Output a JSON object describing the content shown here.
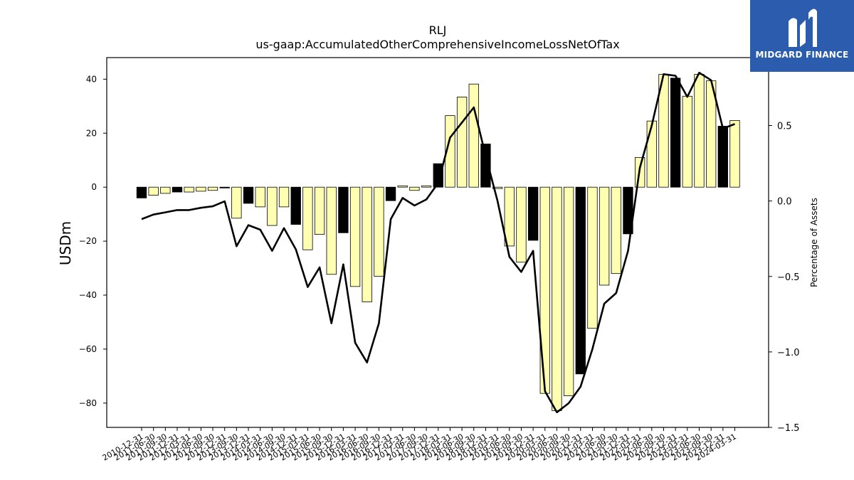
{
  "chart_data": {
    "type": "bar+line",
    "title": "RLJ",
    "subtitle": "us-gaap:AccumulatedOtherComprehensiveIncomeLossNetOfTax",
    "ylabel": "USDm",
    "y2label": "Percentage of Assets",
    "ylim": [
      -89,
      48
    ],
    "y2lim": [
      -1.5,
      0.95
    ],
    "yticks": [
      -80,
      -60,
      -40,
      -20,
      0,
      20,
      40
    ],
    "y2ticks": [
      -1.5,
      -1.0,
      -0.5,
      0.0,
      0.5
    ],
    "categories": [
      "2010-12-31",
      "2011-06-30",
      "2011-09-30",
      "2011-12-31",
      "2012-03-31",
      "2012-06-30",
      "2012-09-30",
      "2012-12-31",
      "2013-09-30",
      "2013-12-31",
      "2014-03-31",
      "2014-06-30",
      "2014-09-30",
      "2014-12-31",
      "2015-03-31",
      "2015-06-30",
      "2015-09-30",
      "2015-12-31",
      "2016-03-31",
      "2016-06-30",
      "2016-09-30",
      "2016-12-31",
      "2017-03-31",
      "2017-06-30",
      "2017-09-30",
      "2017-12-31",
      "2018-03-31",
      "2018-06-30",
      "2018-09-30",
      "2018-12-31",
      "2019-03-31",
      "2019-06-30",
      "2019-09-30",
      "2019-12-31",
      "2020-03-31",
      "2020-06-30",
      "2020-09-30",
      "2020-12-31",
      "2021-03-31",
      "2021-06-30",
      "2021-09-30",
      "2021-12-31",
      "2022-03-31",
      "2022-06-30",
      "2022-09-30",
      "2022-12-31",
      "2023-03-31",
      "2023-06-30",
      "2023-09-30",
      "2023-12-31",
      "2024-03-31"
    ],
    "series": [
      {
        "type": "bar",
        "values": [
          -4.0,
          -3.0,
          -2.3,
          -1.8,
          -1.8,
          -1.5,
          -1.2,
          -0.3,
          -11.5,
          -6.0,
          -7.3,
          -14.2,
          -7.3,
          -13.8,
          -23.2,
          -17.5,
          -32.3,
          -16.9,
          -36.8,
          -42.5,
          -33.0,
          -5.0,
          0.5,
          -1.2,
          0.5,
          8.7,
          26.5,
          33.4,
          38.2,
          16.0,
          -0.5,
          -21.8,
          -27.8,
          -19.7,
          -76.4,
          -82.8,
          -77.3,
          -69.2,
          -52.3,
          -36.3,
          -32.0,
          -17.3,
          11.0,
          24.5,
          41.8,
          40.4,
          33.7,
          41.8,
          39.4,
          22.6,
          24.7
        ],
        "colors": [
          "#000000",
          "#ffffb2",
          "#ffffb2",
          "#000000",
          "#ffffb2",
          "#ffffb2",
          "#ffffb2",
          "#000000",
          "#ffffb2",
          "#000000",
          "#ffffb2",
          "#ffffb2",
          "#ffffb2",
          "#000000",
          "#ffffb2",
          "#ffffb2",
          "#ffffb2",
          "#000000",
          "#ffffb2",
          "#ffffb2",
          "#ffffb2",
          "#000000",
          "#ffffb2",
          "#ffffb2",
          "#ffffb2",
          "#000000",
          "#ffffb2",
          "#ffffb2",
          "#ffffb2",
          "#000000",
          "#ffffb2",
          "#ffffb2",
          "#ffffb2",
          "#000000",
          "#ffffb2",
          "#ffffb2",
          "#ffffb2",
          "#000000",
          "#ffffb2",
          "#ffffb2",
          "#ffffb2",
          "#000000",
          "#ffffb2",
          "#ffffb2",
          "#ffffb2",
          "#000000",
          "#ffffb2",
          "#ffffb2",
          "#ffffb2",
          "#000000",
          "#ffffb2"
        ]
      },
      {
        "type": "line",
        "axis": "right",
        "color": "#000000",
        "values": [
          -0.12,
          -0.09,
          -0.075,
          -0.06,
          -0.06,
          -0.045,
          -0.035,
          -0.002,
          -0.3,
          -0.16,
          -0.19,
          -0.33,
          -0.18,
          -0.32,
          -0.57,
          -0.44,
          -0.81,
          -0.42,
          -0.94,
          -1.07,
          -0.81,
          -0.12,
          0.02,
          -0.03,
          0.01,
          0.12,
          0.42,
          0.52,
          0.62,
          0.3,
          0.0,
          -0.37,
          -0.47,
          -0.33,
          -1.26,
          -1.4,
          -1.34,
          -1.23,
          -0.98,
          -0.68,
          -0.61,
          -0.33,
          0.22,
          0.5,
          0.84,
          0.83,
          0.69,
          0.85,
          0.8,
          0.48,
          0.51
        ]
      }
    ]
  },
  "logo": {
    "text": "MIDGARD FINANCE",
    "brand_color": "#2c5cad"
  }
}
